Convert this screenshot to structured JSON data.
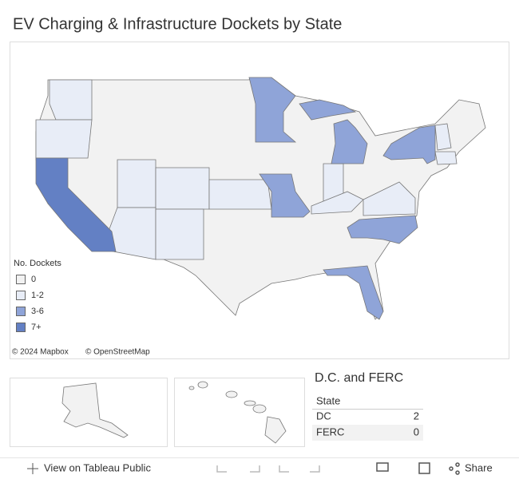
{
  "header": {
    "title": "EV Charging & Infrastructure Dockets by State"
  },
  "legend": {
    "title": "No. Dockets",
    "items": [
      {
        "label": "0",
        "color": "#f2f2f2"
      },
      {
        "label": "1-2",
        "color": "#e8edf7"
      },
      {
        "label": "3-6",
        "color": "#8fa4d8"
      },
      {
        "label": "7+",
        "color": "#6380c4"
      }
    ]
  },
  "attribution": [
    "© 2024 Mapbox",
    "© OpenStreetMap"
  ],
  "table": {
    "title": "D.C. and FERC",
    "header": "State",
    "rows": [
      [
        "DC",
        2
      ],
      [
        "FERC",
        0
      ]
    ]
  },
  "toolbar": {
    "view": "View on Tableau Public",
    "share": "Share"
  }
}
